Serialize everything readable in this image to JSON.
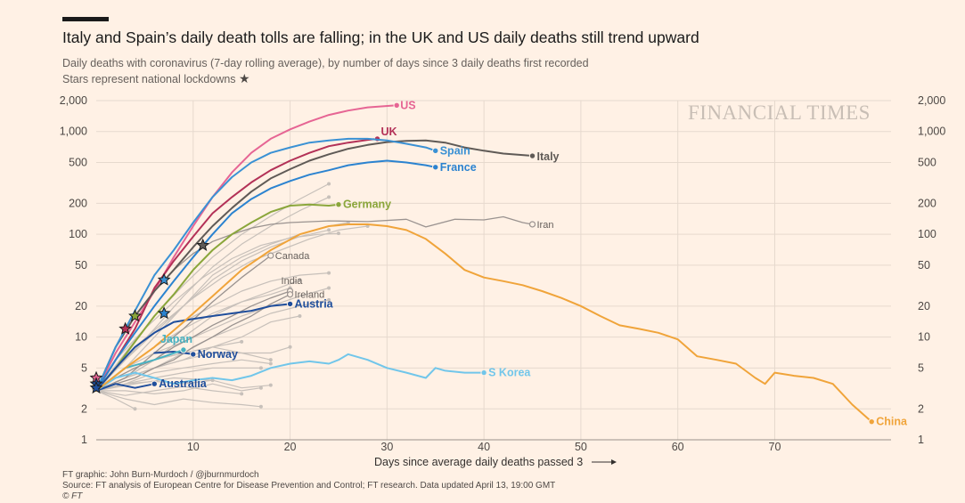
{
  "chart_data": {
    "type": "line",
    "title": "Italy and Spain’s daily death tolls are falling; in the UK and US daily deaths still trend upward",
    "subtitle": "Daily deaths with coronavirus (7-day rolling average), by number of days since 3 daily deaths first recorded",
    "star_note": "Stars represent national lockdowns",
    "watermark": "FINANCIAL TIMES",
    "xlabel": "Days since average daily deaths passed 3",
    "y_scale": "log",
    "xlim": [
      0,
      82
    ],
    "ylim": [
      1,
      2000
    ],
    "x_ticks": [
      10,
      20,
      30,
      40,
      50,
      60,
      70
    ],
    "y_ticks": [
      {
        "value": 1,
        "label": "1"
      },
      {
        "value": 2,
        "label": "2"
      },
      {
        "value": 5,
        "label": "5"
      },
      {
        "value": 10,
        "label": "10"
      },
      {
        "value": 20,
        "label": "20"
      },
      {
        "value": 50,
        "label": "50"
      },
      {
        "value": 100,
        "label": "100"
      },
      {
        "value": 200,
        "label": "200"
      },
      {
        "value": 500,
        "label": "500"
      },
      {
        "value": 1000,
        "label": "1,000"
      },
      {
        "value": 2000,
        "label": "2,000"
      }
    ],
    "grid": true,
    "colors": {
      "background": "#fff1e5",
      "gridline": "#e6d9ce",
      "background_series": "#c7c0ba"
    },
    "background_series": [
      {
        "x": [
          0,
          3,
          6,
          9,
          12,
          15,
          18,
          20
        ],
        "y": [
          3,
          4,
          6,
          7,
          8,
          7,
          7,
          8
        ]
      },
      {
        "x": [
          0,
          2,
          4,
          7,
          10,
          13,
          16,
          19,
          22,
          25,
          28
        ],
        "y": [
          3,
          5,
          8,
          14,
          24,
          38,
          55,
          70,
          90,
          110,
          120
        ]
      },
      {
        "x": [
          0,
          3,
          6,
          9,
          12,
          15,
          18,
          21,
          24
        ],
        "y": [
          3,
          7,
          16,
          32,
          60,
          100,
          150,
          220,
          310
        ]
      },
      {
        "x": [
          0,
          3,
          6,
          9,
          12,
          15,
          18,
          21,
          24
        ],
        "y": [
          3,
          6,
          11,
          20,
          36,
          55,
          75,
          95,
          110
        ]
      },
      {
        "x": [
          0,
          3,
          6,
          9,
          12,
          15,
          18,
          21,
          24
        ],
        "y": [
          3,
          5,
          8,
          14,
          20,
          28,
          35,
          40,
          42
        ]
      },
      {
        "x": [
          0,
          3,
          6,
          9,
          12,
          15,
          18,
          21,
          24
        ],
        "y": [
          3,
          4,
          5,
          7,
          10,
          13,
          17,
          20,
          23
        ]
      },
      {
        "x": [
          0,
          3,
          6,
          9,
          12,
          15,
          18
        ],
        "y": [
          3,
          4,
          5,
          6,
          7,
          7,
          6
        ]
      },
      {
        "x": [
          0,
          3,
          6,
          9,
          12,
          15,
          17
        ],
        "y": [
          3,
          3.5,
          4,
          4.5,
          5,
          5,
          5
        ]
      },
      {
        "x": [
          0,
          3,
          6,
          9,
          12,
          15,
          17
        ],
        "y": [
          3,
          3,
          2.8,
          3,
          3.5,
          3,
          3.2
        ]
      },
      {
        "x": [
          0,
          3,
          6,
          9,
          12,
          15,
          17
        ],
        "y": [
          3,
          2.5,
          2.2,
          2.5,
          2.3,
          2.2,
          2.1
        ]
      },
      {
        "x": [
          0,
          2,
          4
        ],
        "y": [
          3,
          2.5,
          2
        ]
      },
      {
        "x": [
          0,
          3,
          6,
          9,
          12,
          15,
          18,
          20
        ],
        "y": [
          3,
          5,
          8,
          12,
          17,
          22,
          26,
          30
        ]
      },
      {
        "x": [
          0,
          3,
          6,
          9,
          12,
          15
        ],
        "y": [
          3,
          4,
          6,
          7,
          8,
          9
        ]
      },
      {
        "x": [
          0,
          3,
          6,
          9,
          12,
          15,
          18,
          21
        ],
        "y": [
          3,
          4,
          5,
          6,
          8,
          10,
          14,
          16
        ]
      },
      {
        "x": [
          0,
          3,
          6,
          9,
          12,
          15,
          18,
          21,
          24
        ],
        "y": [
          3,
          5,
          7,
          9,
          12,
          16,
          20,
          25,
          30
        ]
      },
      {
        "x": [
          0,
          3,
          6,
          9,
          12,
          15,
          18
        ],
        "y": [
          3,
          3.5,
          4.5,
          5,
          5.5,
          6,
          5.5
        ]
      },
      {
        "x": [
          0,
          3,
          6,
          9,
          12,
          15,
          18,
          21,
          24,
          26
        ],
        "y": [
          3,
          5,
          10,
          20,
          40,
          60,
          80,
          100,
          120,
          130
        ]
      },
      {
        "x": [
          0,
          3,
          6,
          9,
          12,
          15
        ],
        "y": [
          3,
          2.7,
          3,
          3.3,
          3,
          2.8
        ]
      },
      {
        "x": [
          0,
          4,
          8,
          12
        ],
        "y": [
          3,
          3.5,
          4,
          3.8
        ]
      },
      {
        "x": [
          0,
          3,
          6,
          9,
          12,
          15,
          18,
          21
        ],
        "y": [
          3,
          4,
          6,
          10,
          16,
          22,
          28,
          36
        ]
      },
      {
        "x": [
          0,
          3,
          6,
          9,
          12,
          15,
          18
        ],
        "y": [
          3,
          3.5,
          3.7,
          3.5,
          3.8,
          3.2,
          3.4
        ]
      },
      {
        "x": [
          0,
          2,
          5,
          8,
          11,
          14,
          17,
          20,
          23,
          25
        ],
        "y": [
          3,
          6,
          12,
          22,
          38,
          58,
          78,
          92,
          100,
          102
        ]
      },
      {
        "x": [
          0,
          3,
          6,
          9,
          12,
          15,
          18,
          21,
          24
        ],
        "y": [
          3,
          6,
          12,
          25,
          48,
          80,
          120,
          170,
          230
        ]
      }
    ],
    "labeled_gray": [
      {
        "name": "Canada",
        "color": "#9a9390",
        "x": [
          0,
          3,
          6,
          9,
          12,
          15,
          18
        ],
        "y": [
          3,
          4,
          7,
          12,
          22,
          38,
          62
        ]
      },
      {
        "name": "India",
        "color": "#9a9390",
        "x": [
          0,
          2,
          4,
          6,
          8,
          10,
          12,
          14,
          16,
          18,
          20
        ],
        "y": [
          3,
          4,
          5,
          6,
          8,
          10,
          13,
          16,
          20,
          24,
          28
        ]
      },
      {
        "name": "Ireland",
        "color": "#9a9390",
        "x": [
          0,
          2,
          4,
          6,
          8,
          10,
          12,
          14,
          16,
          18,
          20
        ],
        "y": [
          3,
          3.5,
          4,
          5,
          6,
          8,
          10,
          13,
          16,
          21,
          26
        ]
      },
      {
        "name": "Iran",
        "color": "#9a9390",
        "x": [
          0,
          2,
          4,
          6,
          8,
          10,
          12,
          14,
          16,
          18,
          20,
          24,
          28,
          32,
          34,
          37,
          40,
          42,
          44,
          45
        ],
        "y": [
          3,
          8,
          16,
          28,
          45,
          65,
          85,
          100,
          115,
          125,
          130,
          135,
          133,
          140,
          118,
          140,
          138,
          148,
          130,
          125
        ]
      }
    ],
    "series": [
      {
        "name": "US",
        "color": "#e66594",
        "x": [
          0,
          2,
          4,
          6,
          8,
          10,
          12,
          14,
          16,
          18,
          20,
          22,
          24,
          26,
          28,
          31
        ],
        "y": [
          3,
          7,
          14,
          28,
          60,
          120,
          230,
          400,
          620,
          850,
          1050,
          1250,
          1450,
          1600,
          1720,
          1800
        ]
      },
      {
        "name": "UK",
        "color": "#b33157",
        "x": [
          0,
          2,
          4,
          6,
          8,
          10,
          12,
          14,
          16,
          18,
          20,
          22,
          24,
          26,
          28,
          29
        ],
        "y": [
          3,
          6,
          12,
          30,
          55,
          95,
          160,
          230,
          320,
          420,
          520,
          620,
          720,
          780,
          830,
          850
        ]
      },
      {
        "name": "Italy",
        "color": "#5f5a56",
        "x": [
          0,
          2,
          4,
          6,
          8,
          10,
          12,
          14,
          16,
          18,
          20,
          22,
          24,
          26,
          28,
          30,
          32,
          34,
          36,
          38,
          40,
          42,
          45
        ],
        "y": [
          3,
          8,
          16,
          28,
          45,
          75,
          120,
          180,
          260,
          350,
          430,
          520,
          600,
          680,
          740,
          790,
          810,
          820,
          780,
          700,
          650,
          610,
          580
        ]
      },
      {
        "name": "Spain",
        "color": "#3a91d4",
        "x": [
          0,
          2,
          4,
          6,
          8,
          10,
          12,
          14,
          16,
          18,
          20,
          22,
          24,
          26,
          28,
          30,
          32,
          34,
          35
        ],
        "y": [
          3,
          8,
          18,
          40,
          70,
          130,
          230,
          360,
          500,
          620,
          700,
          780,
          820,
          850,
          850,
          820,
          760,
          700,
          650
        ]
      },
      {
        "name": "France",
        "color": "#2b83d0",
        "x": [
          0,
          2,
          4,
          6,
          8,
          10,
          12,
          14,
          16,
          18,
          20,
          22,
          24,
          26,
          28,
          30,
          32,
          34,
          35
        ],
        "y": [
          3,
          6,
          11,
          20,
          35,
          60,
          100,
          160,
          220,
          280,
          330,
          380,
          420,
          470,
          500,
          520,
          500,
          470,
          450
        ]
      },
      {
        "name": "Germany",
        "color": "#8aa63b",
        "x": [
          0,
          2,
          4,
          6,
          8,
          10,
          12,
          14,
          16,
          18,
          20,
          22,
          24,
          25
        ],
        "y": [
          3,
          5,
          9,
          16,
          26,
          45,
          70,
          100,
          130,
          165,
          190,
          195,
          190,
          195
        ]
      },
      {
        "name": "Austria",
        "color": "#1f4e9c",
        "x": [
          0,
          2,
          4,
          6,
          8,
          10,
          12,
          14,
          16,
          18,
          20
        ],
        "y": [
          3,
          5,
          8,
          11,
          14,
          15,
          16,
          17,
          18,
          20,
          21
        ]
      },
      {
        "name": "Norway",
        "color": "#1f4e9c",
        "x": [
          6,
          8,
          10
        ],
        "y": [
          7,
          7.2,
          6.8
        ]
      },
      {
        "name": "Japan",
        "color": "#47b2c2",
        "x": [
          0,
          3,
          6,
          9
        ],
        "y": [
          3,
          5,
          6,
          7.5
        ]
      },
      {
        "name": "Australia",
        "color": "#1f4e9c",
        "x": [
          0,
          2,
          4,
          6
        ],
        "y": [
          3,
          3.5,
          3.2,
          3.5
        ]
      },
      {
        "name": "S Korea",
        "color": "#71c6ea",
        "x": [
          0,
          2,
          4,
          6,
          8,
          10,
          12,
          14,
          16,
          18,
          20,
          22,
          24,
          25,
          26,
          28,
          30,
          32,
          34,
          35,
          36,
          38,
          40
        ],
        "y": [
          3,
          4,
          4.5,
          4,
          3.5,
          3.8,
          4,
          3.8,
          4.2,
          5,
          5.5,
          5.8,
          5.5,
          6,
          6.8,
          6,
          5,
          4.5,
          4,
          5,
          4.7,
          4.5,
          4.5
        ]
      },
      {
        "name": "China",
        "color": "#f0a43a",
        "x": [
          0,
          3,
          6,
          9,
          12,
          15,
          18,
          21,
          24,
          26,
          28,
          30,
          32,
          34,
          36,
          38,
          40,
          42,
          44,
          46,
          48,
          50,
          52,
          54,
          56,
          58,
          60,
          62,
          64,
          66,
          68,
          69,
          70,
          72,
          74,
          76,
          78,
          80
        ],
        "y": [
          3,
          5,
          8,
          14,
          25,
          45,
          70,
          100,
          120,
          125,
          125,
          120,
          110,
          90,
          65,
          45,
          38,
          35,
          32,
          28,
          24,
          20,
          16,
          13,
          12,
          11,
          9.5,
          6.5,
          6,
          5.5,
          4,
          3.5,
          4.5,
          4.2,
          4,
          3.5,
          2.2,
          1.5
        ]
      }
    ],
    "labels": [
      {
        "series": "US",
        "text": "US",
        "dx": 4,
        "dy": 4,
        "bold": true
      },
      {
        "series": "UK",
        "text": "UK",
        "dx": 4,
        "dy": -4,
        "bold": true
      },
      {
        "series": "Italy",
        "text": "Italy",
        "dx": 5,
        "dy": 5,
        "bold": true
      },
      {
        "series": "Spain",
        "text": "Spain",
        "dx": 5,
        "dy": 4,
        "bold": true
      },
      {
        "series": "France",
        "text": "France",
        "dx": 5,
        "dy": 4,
        "bold": true
      },
      {
        "series": "Germany",
        "text": "Germany",
        "dx": 5,
        "dy": 4,
        "bold": true
      },
      {
        "series": "Austria",
        "text": "Austria",
        "dx": 5,
        "dy": 4,
        "bold": true
      },
      {
        "series": "Norway",
        "text": "Norway",
        "dx": 5,
        "dy": 4,
        "bold": true
      },
      {
        "series": "Japan",
        "text": "Japan",
        "dx": -26,
        "dy": -8,
        "bold": true
      },
      {
        "series": "Australia",
        "text": "Australia",
        "dx": 5,
        "dy": 4,
        "bold": true
      },
      {
        "series": "S Korea",
        "text": "S Korea",
        "dx": 5,
        "dy": 4,
        "bold": true
      },
      {
        "series": "China",
        "text": "China",
        "dx": 5,
        "dy": 4,
        "bold": true
      },
      {
        "series": "Canada",
        "text": "Canada",
        "dx": 5,
        "dy": 4,
        "bold": false
      },
      {
        "series": "India",
        "text": "India",
        "dx": -10,
        "dy": -8,
        "bold": false
      },
      {
        "series": "Ireland",
        "text": "Ireland",
        "dx": 5,
        "dy": 4,
        "bold": false
      },
      {
        "series": "Iran",
        "text": "Iran",
        "dx": 5,
        "dy": 4,
        "bold": false
      }
    ],
    "lockdowns": [
      {
        "country": "Italy",
        "x": 11,
        "y": 78
      },
      {
        "country": "Spain",
        "x": 7,
        "y": 36
      },
      {
        "country": "France",
        "x": 7,
        "y": 17
      },
      {
        "country": "Germany",
        "x": 4,
        "y": 16
      },
      {
        "country": "UK",
        "x": 3,
        "y": 12
      },
      {
        "country": "US",
        "x": 0,
        "y": 4
      },
      {
        "country": "Austria",
        "x": 0,
        "y": 3.5
      },
      {
        "country": "Norway",
        "x": 0,
        "y": 3.2
      }
    ],
    "footer": {
      "credit": "FT graphic: John Burn-Murdoch / @jburnmurdoch",
      "source": "Source: FT analysis of European Centre for Disease Prevention and Control; FT research. Data updated April 13, 19:00 GMT",
      "copyright": "© FT"
    }
  }
}
